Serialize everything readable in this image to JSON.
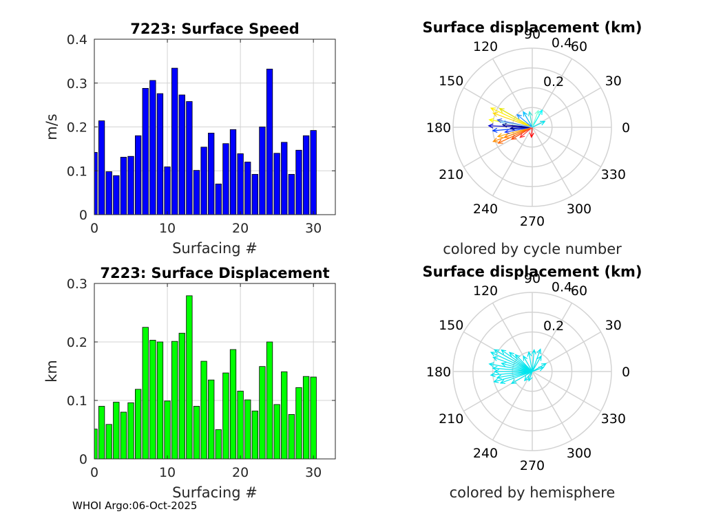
{
  "footer": "WHOI Argo:06-Oct-2025",
  "colors": {
    "speed_bar": "#0000ff",
    "disp_bar": "#00ff00",
    "hemisphere": "#00e5ee",
    "grid": "#d3d3d3"
  },
  "chart_data": [
    {
      "id": "speed",
      "type": "bar",
      "title": "7223: Surface Speed",
      "xlabel": "Surfacing #",
      "ylabel": "m/s",
      "xlim": [
        0,
        33
      ],
      "ylim": [
        0,
        0.4
      ],
      "xticks": [
        "0",
        "10",
        "20",
        "30"
      ],
      "yticks": [
        "0",
        "0.1",
        "0.2",
        "0.3",
        "0.4"
      ],
      "x": [
        0,
        1,
        2,
        3,
        4,
        5,
        6,
        7,
        8,
        9,
        10,
        11,
        12,
        13,
        14,
        15,
        16,
        17,
        18,
        19,
        20,
        21,
        22,
        23,
        24,
        25,
        26,
        27,
        28,
        29,
        30
      ],
      "values": [
        0.142,
        0.214,
        0.098,
        0.089,
        0.131,
        0.133,
        0.18,
        0.288,
        0.306,
        0.276,
        0.109,
        0.334,
        0.273,
        0.258,
        0.101,
        0.154,
        0.186,
        0.07,
        0.162,
        0.194,
        0.139,
        0.12,
        0.092,
        0.2,
        0.332,
        0.14,
        0.165,
        0.092,
        0.147,
        0.18,
        0.192
      ]
    },
    {
      "id": "displacement",
      "type": "bar",
      "title": "7223: Surface Displacement",
      "xlabel": "Surfacing #",
      "ylabel": "km",
      "xlim": [
        0,
        33
      ],
      "ylim": [
        0,
        0.3
      ],
      "xticks": [
        "0",
        "10",
        "20",
        "30"
      ],
      "yticks": [
        "0",
        "0.1",
        "0.2",
        "0.3"
      ],
      "x": [
        0,
        1,
        2,
        3,
        4,
        5,
        6,
        7,
        8,
        9,
        10,
        11,
        12,
        13,
        14,
        15,
        16,
        17,
        18,
        19,
        20,
        21,
        22,
        23,
        24,
        25,
        26,
        27,
        28,
        29,
        30
      ],
      "values": [
        0.051,
        0.09,
        0.059,
        0.097,
        0.08,
        0.096,
        0.119,
        0.225,
        0.203,
        0.2,
        0.099,
        0.201,
        0.215,
        0.279,
        0.09,
        0.167,
        0.135,
        0.05,
        0.147,
        0.187,
        0.116,
        0.101,
        0.082,
        0.158,
        0.2,
        0.093,
        0.149,
        0.076,
        0.122,
        0.141,
        0.14
      ]
    },
    {
      "id": "polar-cycle",
      "type": "polar-compass",
      "title": "Surface displacement (km)",
      "subtitle": "colored by cycle number",
      "rmax": 0.4,
      "rticks": [
        "0.2",
        "0.4"
      ],
      "angle_ticks": [
        "0",
        "30",
        "60",
        "90",
        "120",
        "150",
        "180",
        "210",
        "240",
        "270",
        "300",
        "330"
      ],
      "arrows": [
        {
          "angle": 170,
          "r": 0.22,
          "color": "#ffff00"
        },
        {
          "angle": 160,
          "r": 0.21,
          "color": "#ffd700"
        },
        {
          "angle": 155,
          "r": 0.23,
          "color": "#ffee00"
        },
        {
          "angle": 150,
          "r": 0.19,
          "color": "#e6e600"
        },
        {
          "angle": 200,
          "r": 0.21,
          "color": "#ff8c00"
        },
        {
          "angle": 205,
          "r": 0.19,
          "color": "#ff6600"
        },
        {
          "angle": 195,
          "r": 0.18,
          "color": "#ffa500"
        },
        {
          "angle": 210,
          "r": 0.12,
          "color": "#ff4500"
        },
        {
          "angle": 265,
          "r": 0.05,
          "color": "#ff0000"
        },
        {
          "angle": 185,
          "r": 0.2,
          "color": "#0040ff"
        },
        {
          "angle": 178,
          "r": 0.22,
          "color": "#0000cd"
        },
        {
          "angle": 190,
          "r": 0.14,
          "color": "#1e3cff"
        },
        {
          "angle": 175,
          "r": 0.15,
          "color": "#000080"
        },
        {
          "angle": 168,
          "r": 0.18,
          "color": "#4169e1"
        },
        {
          "angle": 183,
          "r": 0.11,
          "color": "#00008b"
        },
        {
          "angle": 120,
          "r": 0.09,
          "color": "#00bfff"
        },
        {
          "angle": 100,
          "r": 0.08,
          "color": "#40e0d0"
        },
        {
          "angle": 60,
          "r": 0.1,
          "color": "#00ffff"
        },
        {
          "angle": 70,
          "r": 0.09,
          "color": "#7fffd4"
        },
        {
          "angle": 25,
          "r": 0.07,
          "color": "#00e5ee"
        },
        {
          "angle": 140,
          "r": 0.1,
          "color": "#1e90ff"
        },
        {
          "angle": 200,
          "r": 0.15,
          "color": "#ff8000"
        },
        {
          "angle": 220,
          "r": 0.08,
          "color": "#ff3030"
        },
        {
          "angle": 170,
          "r": 0.16,
          "color": "#87cefa"
        }
      ]
    },
    {
      "id": "polar-hemisphere",
      "type": "polar-compass",
      "title": "Surface displacement (km)",
      "subtitle": "colored by hemisphere",
      "rmax": 0.4,
      "rticks": [
        "0.2",
        "0.4"
      ],
      "angle_ticks": [
        "0",
        "30",
        "60",
        "90",
        "120",
        "150",
        "180",
        "210",
        "240",
        "270",
        "300",
        "330"
      ],
      "arrows": [
        {
          "angle": 150,
          "r": 0.22
        },
        {
          "angle": 145,
          "r": 0.19
        },
        {
          "angle": 155,
          "r": 0.23
        },
        {
          "angle": 160,
          "r": 0.21
        },
        {
          "angle": 165,
          "r": 0.16
        },
        {
          "angle": 170,
          "r": 0.22
        },
        {
          "angle": 175,
          "r": 0.2
        },
        {
          "angle": 180,
          "r": 0.19
        },
        {
          "angle": 185,
          "r": 0.21
        },
        {
          "angle": 190,
          "r": 0.18
        },
        {
          "angle": 195,
          "r": 0.2
        },
        {
          "angle": 200,
          "r": 0.17
        },
        {
          "angle": 210,
          "r": 0.12
        },
        {
          "angle": 230,
          "r": 0.06
        },
        {
          "angle": 135,
          "r": 0.12
        },
        {
          "angle": 120,
          "r": 0.09
        },
        {
          "angle": 100,
          "r": 0.1
        },
        {
          "angle": 85,
          "r": 0.11
        },
        {
          "angle": 70,
          "r": 0.12
        },
        {
          "angle": 60,
          "r": 0.09
        },
        {
          "angle": 30,
          "r": 0.08
        },
        {
          "angle": 20,
          "r": 0.06
        },
        {
          "angle": 250,
          "r": 0.05
        },
        {
          "angle": 140,
          "r": 0.15
        }
      ]
    }
  ]
}
